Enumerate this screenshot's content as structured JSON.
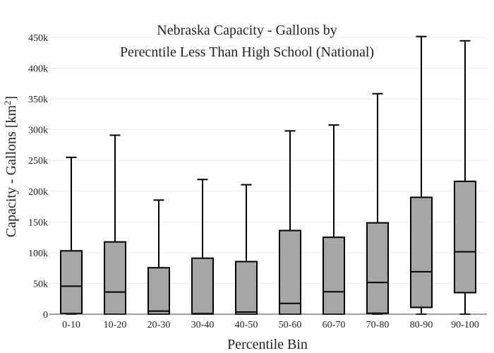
{
  "chart_data": {
    "type": "box",
    "title_lines": [
      "Nebraska Capacity - Gallons by",
      "Perecntile Less Than High School (National)"
    ],
    "xlabel": "Percentile Bin",
    "ylabel_main": "Capacity - Gallons  [km",
    "ylabel_sup": "2",
    "ylabel_end": "]",
    "ylim": [
      0,
      450000
    ],
    "yticks": [
      0,
      50000,
      100000,
      150000,
      200000,
      250000,
      300000,
      350000,
      400000,
      450000
    ],
    "ytick_labels": [
      "0",
      "50k",
      "100k",
      "150k",
      "200k",
      "250k",
      "300k",
      "350k",
      "400k",
      "450k"
    ],
    "categories": [
      "0-10",
      "10-20",
      "20-30",
      "30-40",
      "40-50",
      "50-60",
      "60-70",
      "70-80",
      "80-90",
      "90-100"
    ],
    "boxes": [
      {
        "min": 0,
        "q1": 1000,
        "median": 45500,
        "q3": 103000,
        "max": 255000
      },
      {
        "min": 0,
        "q1": 0,
        "median": 36000,
        "q3": 117500,
        "max": 291000
      },
      {
        "min": 0,
        "q1": 0,
        "median": 5000,
        "q3": 75500,
        "max": 185500
      },
      {
        "min": 0,
        "q1": 0,
        "median": 1000,
        "q3": 91000,
        "max": 219000
      },
      {
        "min": 0,
        "q1": 0,
        "median": 3500,
        "q3": 85500,
        "max": 210500
      },
      {
        "min": 0,
        "q1": 0,
        "median": 17500,
        "q3": 136000,
        "max": 298000
      },
      {
        "min": 0,
        "q1": 0,
        "median": 36500,
        "q3": 125000,
        "max": 307500
      },
      {
        "min": 0,
        "q1": 1500,
        "median": 51500,
        "q3": 148500,
        "max": 358500
      },
      {
        "min": 0,
        "q1": 11000,
        "median": 69000,
        "q3": 190000,
        "max": 451500
      },
      {
        "min": 0,
        "q1": 35000,
        "median": 101500,
        "q3": 216000,
        "max": 444500
      }
    ],
    "box_fill": "#a6a6a6",
    "line_color": "#000000",
    "grid": true
  }
}
